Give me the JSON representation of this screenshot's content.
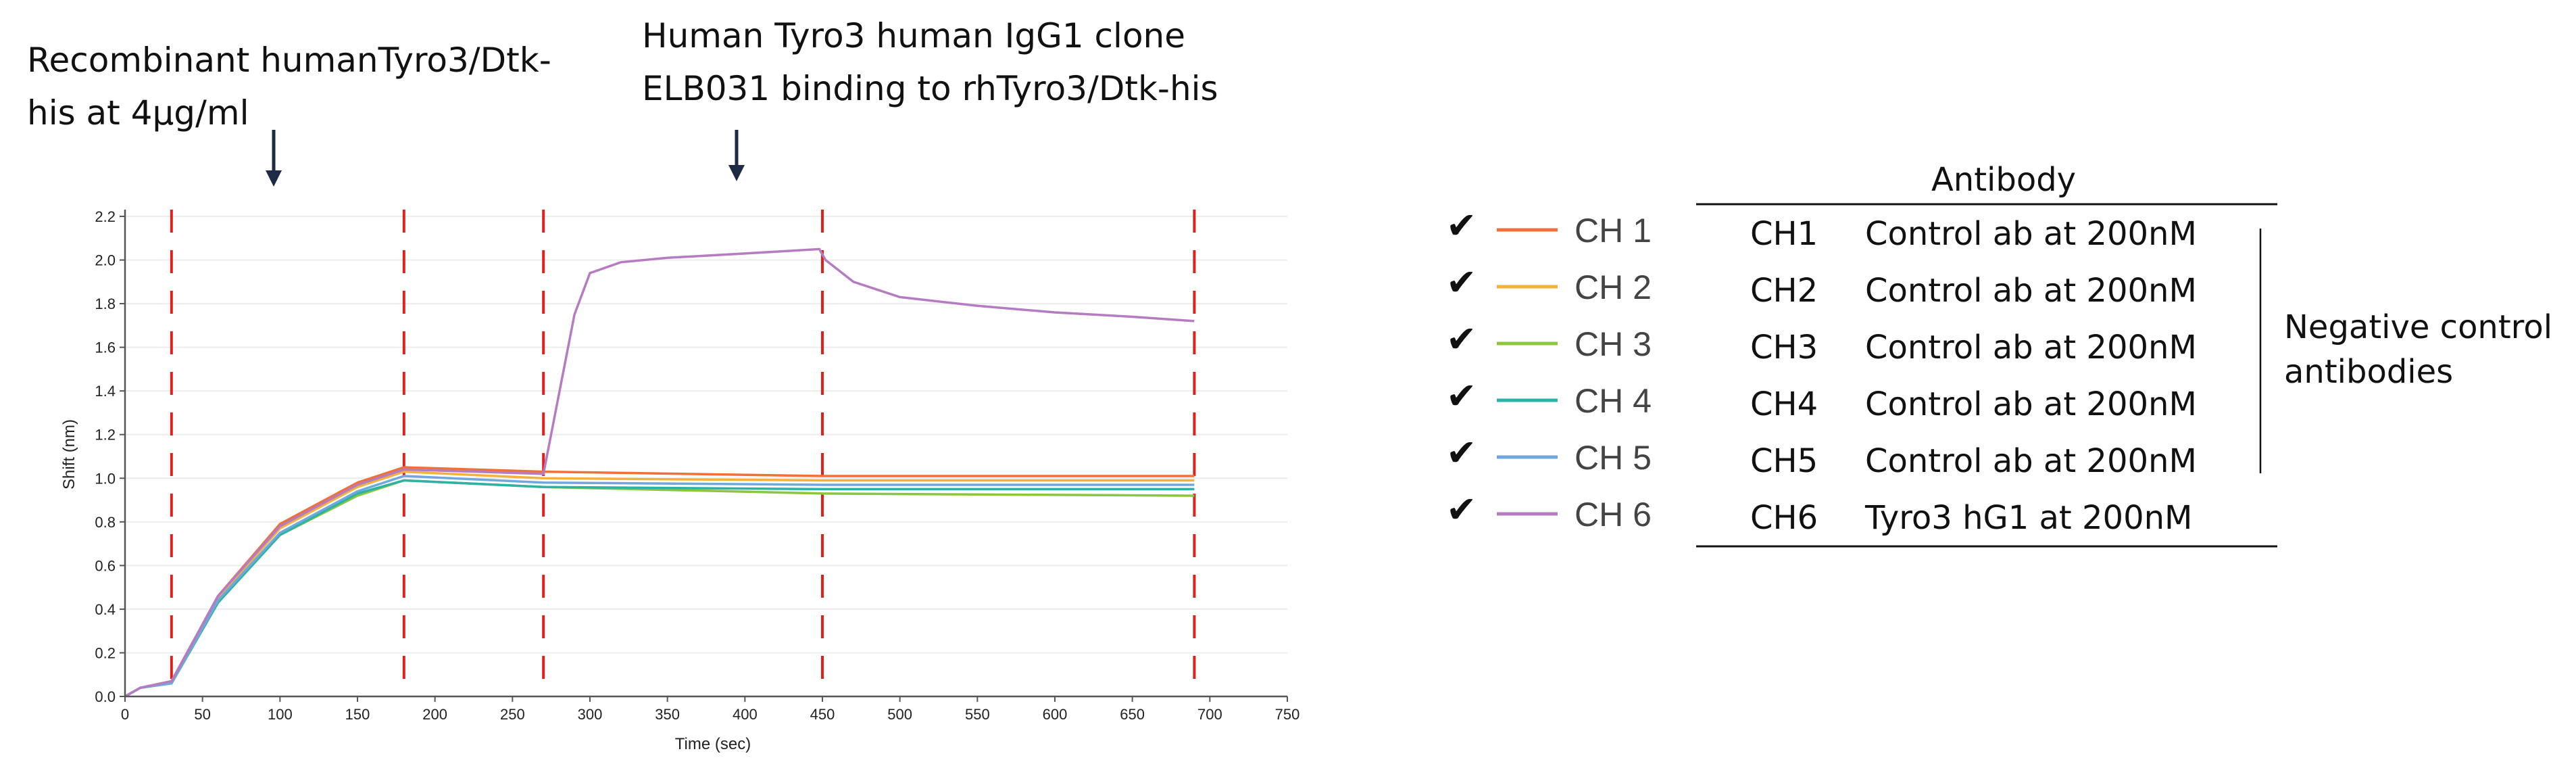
{
  "annotations": {
    "step1": [
      "Recombinant humanTyro3/Dtk-",
      "his at 4µg/ml"
    ],
    "step2": [
      "Human Tyro3 human IgG1 clone",
      "ELB031 binding to rhTyro3/Dtk-his"
    ]
  },
  "chart_data": {
    "type": "line",
    "xlabel": "Time (sec)",
    "ylabel": "Shift (nm)",
    "xlim": [
      0,
      750
    ],
    "ylim": [
      0,
      2.2
    ],
    "xticks": [
      "0",
      "50",
      "100",
      "150",
      "200",
      "250",
      "300",
      "350",
      "400",
      "450",
      "500",
      "550",
      "600",
      "650",
      "700",
      "750"
    ],
    "yticks": [
      "0.0",
      "0.2",
      "0.4",
      "0.6",
      "0.8",
      "1.0",
      "1.2",
      "1.4",
      "1.6",
      "1.8",
      "2.0",
      "2.2"
    ],
    "step_markers_sec": [
      30,
      180,
      270,
      450,
      690
    ],
    "marker_color": "#e0201b",
    "series": [
      {
        "name": "CH 1",
        "color": "#f0703a",
        "points": [
          [
            0,
            0
          ],
          [
            10,
            0.04
          ],
          [
            30,
            0.07
          ],
          [
            60,
            0.46
          ],
          [
            100,
            0.79
          ],
          [
            150,
            0.98
          ],
          [
            180,
            1.05
          ],
          [
            270,
            1.03
          ],
          [
            450,
            1.01
          ],
          [
            690,
            1.01
          ]
        ]
      },
      {
        "name": "CH 2",
        "color": "#f5b23a",
        "points": [
          [
            0,
            0
          ],
          [
            10,
            0.04
          ],
          [
            30,
            0.07
          ],
          [
            60,
            0.45
          ],
          [
            100,
            0.77
          ],
          [
            150,
            0.96
          ],
          [
            180,
            1.03
          ],
          [
            270,
            1.0
          ],
          [
            450,
            0.99
          ],
          [
            690,
            0.99
          ]
        ]
      },
      {
        "name": "CH 3",
        "color": "#8cc63f",
        "points": [
          [
            0,
            0
          ],
          [
            10,
            0.04
          ],
          [
            30,
            0.06
          ],
          [
            60,
            0.43
          ],
          [
            100,
            0.74
          ],
          [
            150,
            0.92
          ],
          [
            180,
            0.99
          ],
          [
            270,
            0.96
          ],
          [
            450,
            0.93
          ],
          [
            690,
            0.92
          ]
        ]
      },
      {
        "name": "CH 4",
        "color": "#2bb3a6",
        "points": [
          [
            0,
            0
          ],
          [
            10,
            0.04
          ],
          [
            30,
            0.06
          ],
          [
            60,
            0.43
          ],
          [
            100,
            0.74
          ],
          [
            150,
            0.93
          ],
          [
            180,
            0.99
          ],
          [
            270,
            0.96
          ],
          [
            450,
            0.95
          ],
          [
            690,
            0.95
          ]
        ]
      },
      {
        "name": "CH 5",
        "color": "#6fa8dc",
        "points": [
          [
            0,
            0
          ],
          [
            10,
            0.04
          ],
          [
            30,
            0.06
          ],
          [
            60,
            0.44
          ],
          [
            100,
            0.75
          ],
          [
            150,
            0.94
          ],
          [
            180,
            1.01
          ],
          [
            270,
            0.98
          ],
          [
            450,
            0.97
          ],
          [
            690,
            0.97
          ]
        ]
      },
      {
        "name": "CH 6",
        "color": "#b57cc2",
        "points": [
          [
            0,
            0
          ],
          [
            10,
            0.04
          ],
          [
            30,
            0.07
          ],
          [
            60,
            0.46
          ],
          [
            100,
            0.78
          ],
          [
            150,
            0.97
          ],
          [
            180,
            1.04
          ],
          [
            270,
            1.02
          ],
          [
            290,
            1.75
          ],
          [
            300,
            1.94
          ],
          [
            320,
            1.99
          ],
          [
            350,
            2.01
          ],
          [
            400,
            2.03
          ],
          [
            448,
            2.05
          ],
          [
            452,
            2.0
          ],
          [
            470,
            1.9
          ],
          [
            500,
            1.83
          ],
          [
            550,
            1.79
          ],
          [
            600,
            1.76
          ],
          [
            650,
            1.74
          ],
          [
            690,
            1.72
          ]
        ]
      }
    ]
  },
  "legend": {
    "checkmark": "✔",
    "items": [
      "CH 1",
      "CH 2",
      "CH 3",
      "CH 4",
      "CH 5",
      "CH 6"
    ]
  },
  "table": {
    "header": "Antibody",
    "rows": [
      {
        "ch": "CH1",
        "desc": "Control ab at 200nM"
      },
      {
        "ch": "CH2",
        "desc": "Control ab at 200nM"
      },
      {
        "ch": "CH3",
        "desc": "Control ab at 200nM"
      },
      {
        "ch": "CH4",
        "desc": "Control ab at 200nM"
      },
      {
        "ch": "CH5",
        "desc": "Control ab at 200nM"
      },
      {
        "ch": "CH6",
        "desc": "Tyro3 hG1 at 200nM"
      }
    ],
    "group_label": [
      "Negative control",
      "antibodies"
    ]
  }
}
